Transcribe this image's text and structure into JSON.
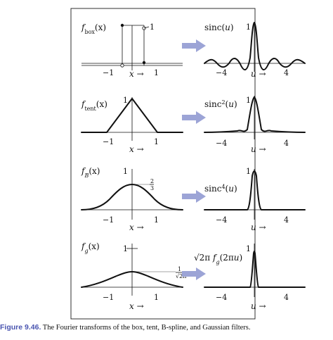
{
  "caption": {
    "number": "Figure 9.46.",
    "text": "The Fourier transforms of the box, tent, B-spline, and Gaussian filters."
  },
  "colors": {
    "arrow": "#9ca4d6",
    "caption_number": "#4a55b0"
  },
  "rows": [
    {
      "left_label": "f<sub>box</sub>(x)",
      "right_label": "sinc(u)",
      "left_peak": "1",
      "right_peak": "1",
      "left_ticks": [
        "−1",
        "1"
      ],
      "right_ticks": [
        "−4",
        "4"
      ],
      "left_axis": "x →",
      "right_axis": "u →"
    },
    {
      "left_label": "f<sub>tent</sub>(x)",
      "right_label": "sinc²(u)",
      "left_peak": "1",
      "right_peak": "1",
      "left_ticks": [
        "−1",
        "1"
      ],
      "right_ticks": [
        "−4",
        "4"
      ],
      "left_axis": "x →",
      "right_axis": "u →"
    },
    {
      "left_label": "f<sub>B</sub>(x)",
      "right_label": "sinc⁴(u)",
      "left_peak": "1",
      "right_peak": "1",
      "left_value": "2/3",
      "left_ticks": [
        "−1",
        "1"
      ],
      "right_ticks": [
        "−4",
        "4"
      ],
      "left_axis": "x →",
      "right_axis": "u →"
    },
    {
      "left_label": "f<sub>g</sub>(x)",
      "right_label": "√2π f<sub>g</sub>(2πu)",
      "left_peak": "1",
      "right_peak": "1",
      "left_value": "1/√2π",
      "left_ticks": [
        "−1",
        "1"
      ],
      "right_ticks": [
        "−4",
        "4"
      ],
      "left_axis": "x →",
      "right_axis": "u →"
    }
  ]
}
